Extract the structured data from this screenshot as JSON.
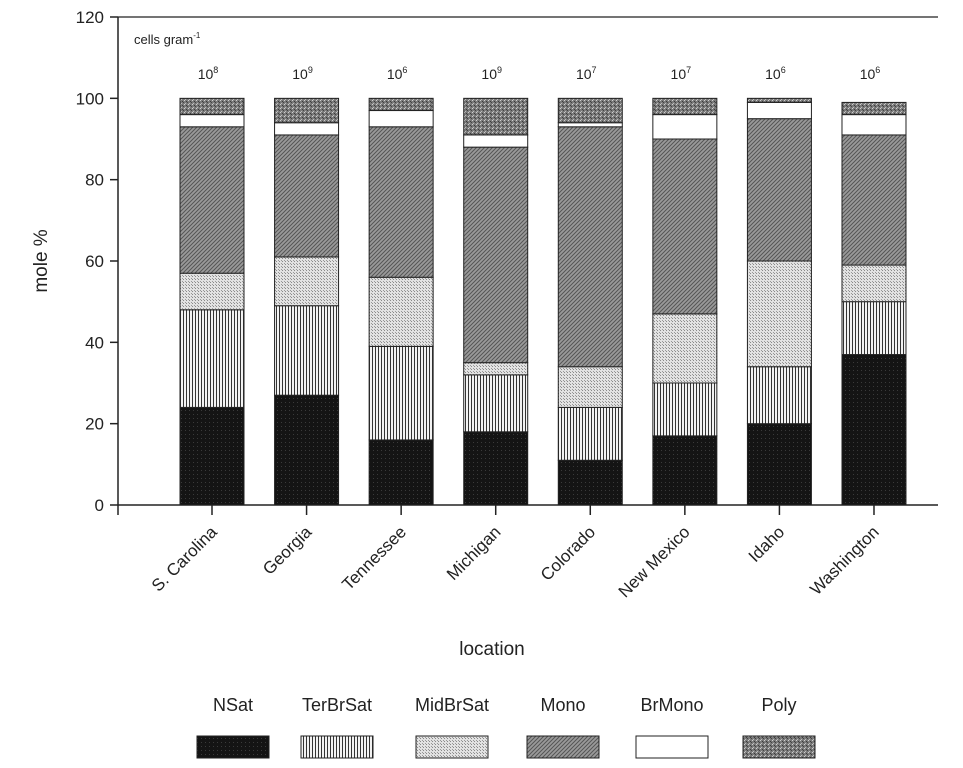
{
  "chart_data": {
    "type": "bar",
    "stacked": true,
    "xlabel": "location",
    "ylabel": "mole %",
    "ylim": [
      0,
      120
    ],
    "yticks": [
      0,
      20,
      40,
      60,
      80,
      100,
      120
    ],
    "categories": [
      "S. Carolina",
      "Georgia",
      "Tennessee",
      "Michigan",
      "Colorado",
      "New Mexico",
      "Idaho",
      "Washington"
    ],
    "annotation_label": "cells gram",
    "annotation_sup": "-1",
    "cell_density": [
      {
        "base": "10",
        "exp": "8"
      },
      {
        "base": "10",
        "exp": "9"
      },
      {
        "base": "10",
        "exp": "6"
      },
      {
        "base": "10",
        "exp": "9"
      },
      {
        "base": "10",
        "exp": "7"
      },
      {
        "base": "10",
        "exp": "7"
      },
      {
        "base": "10",
        "exp": "6"
      },
      {
        "base": "10",
        "exp": "6"
      }
    ],
    "series": [
      {
        "name": "NSat",
        "values": [
          24,
          27,
          16,
          18,
          11,
          17,
          20,
          37
        ]
      },
      {
        "name": "TerBrSat",
        "values": [
          24,
          22,
          23,
          14,
          13,
          13,
          14,
          13
        ]
      },
      {
        "name": "MidBrSat",
        "values": [
          9,
          12,
          17,
          3,
          10,
          17,
          26,
          9
        ]
      },
      {
        "name": "Mono",
        "values": [
          36,
          30,
          37,
          53,
          59,
          43,
          35,
          32
        ]
      },
      {
        "name": "BrMono",
        "values": [
          3,
          3,
          4,
          3,
          1,
          6,
          4,
          5
        ]
      },
      {
        "name": "Poly",
        "values": [
          4,
          6,
          3,
          9,
          6,
          4,
          1,
          3
        ]
      }
    ],
    "legend_position": "bottom",
    "grid": false
  }
}
